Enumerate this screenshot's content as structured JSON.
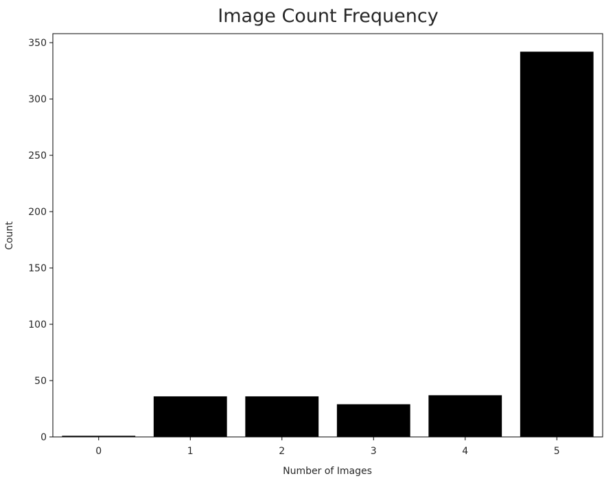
{
  "chart_data": {
    "type": "bar",
    "title": "Image Count Frequency",
    "xlabel": "Number of Images",
    "ylabel": "Count",
    "categories": [
      "0",
      "1",
      "2",
      "3",
      "4",
      "5"
    ],
    "values": [
      1,
      36,
      36,
      29,
      37,
      342
    ],
    "ylim": [
      0,
      358
    ],
    "yticks": [
      "0",
      "50",
      "100",
      "150",
      "200",
      "250",
      "300",
      "350"
    ],
    "bar_color": "#000000",
    "grid": false,
    "legend": "none"
  }
}
